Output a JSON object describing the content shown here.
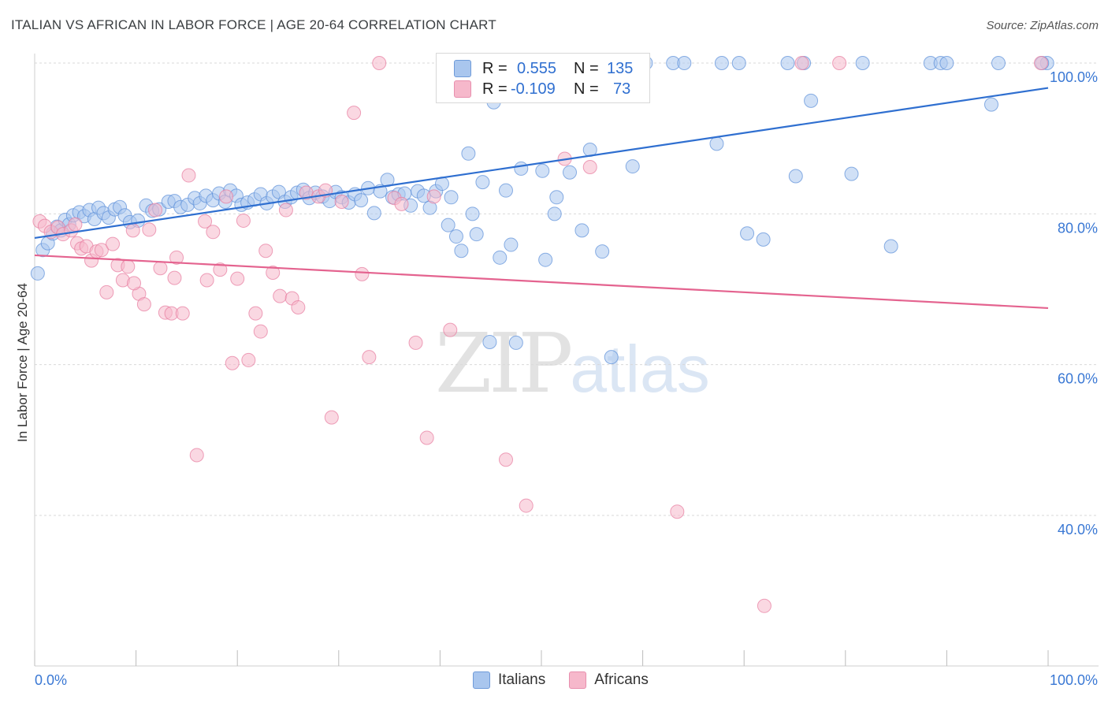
{
  "title": "ITALIAN VS AFRICAN IN LABOR FORCE | AGE 20-64 CORRELATION CHART",
  "source": "Source: ZipAtlas.com",
  "watermark": {
    "zip": "ZIP",
    "atlas": "atlas"
  },
  "legend": {
    "rows": [
      {
        "r_label": "R =",
        "r_value": "0.555",
        "n_label": "N =",
        "n_value": "135",
        "color": "#a9c6ee"
      },
      {
        "r_label": "R =",
        "r_value": "-0.109",
        "n_label": "N =",
        "n_value": "73",
        "color": "#f6b8cb"
      }
    ]
  },
  "bottom_legend": [
    {
      "label": "Italians",
      "color": "#a9c6ee"
    },
    {
      "label": "Africans",
      "color": "#f6b8cb"
    }
  ],
  "chart_data": {
    "type": "scatter",
    "title": "ITALIAN VS AFRICAN IN LABOR FORCE | AGE 20-64 CORRELATION CHART",
    "xlabel": "",
    "ylabel": "In Labor Force | Age 20-64",
    "xlim": [
      0,
      100
    ],
    "ylim": [
      20,
      102
    ],
    "x_tick_labels": [
      "0.0%",
      "100.0%"
    ],
    "y_ticks": [
      40,
      60,
      80,
      100
    ],
    "y_tick_labels": [
      "40.0%",
      "60.0%",
      "80.0%",
      "100.0%"
    ],
    "grid": "horizontal dashed",
    "legend_placement": "top-center",
    "series": [
      {
        "name": "Italians",
        "color": "#5b8fd9",
        "fill": "#a9c6ee",
        "trend": {
          "x": [
            0,
            100
          ],
          "y": [
            76.8,
            96.7
          ]
        },
        "points": [
          [
            0.3,
            72.1
          ],
          [
            0.8,
            75.2
          ],
          [
            1.3,
            76.1
          ],
          [
            1.8,
            77.4
          ],
          [
            2.2,
            78.3
          ],
          [
            2.6,
            77.8
          ],
          [
            3.0,
            79.2
          ],
          [
            3.4,
            78.6
          ],
          [
            3.8,
            79.8
          ],
          [
            4.4,
            80.2
          ],
          [
            4.9,
            79.7
          ],
          [
            5.4,
            80.5
          ],
          [
            5.9,
            79.3
          ],
          [
            6.3,
            80.8
          ],
          [
            6.8,
            80.1
          ],
          [
            7.3,
            79.5
          ],
          [
            7.9,
            80.6
          ],
          [
            8.4,
            80.9
          ],
          [
            8.9,
            79.8
          ],
          [
            9.4,
            78.9
          ],
          [
            10.2,
            79.1
          ],
          [
            11.0,
            81.1
          ],
          [
            11.6,
            80.4
          ],
          [
            12.3,
            80.6
          ],
          [
            13.2,
            81.6
          ],
          [
            13.8,
            81.7
          ],
          [
            14.4,
            80.9
          ],
          [
            15.1,
            81.2
          ],
          [
            15.8,
            82.1
          ],
          [
            16.3,
            81.4
          ],
          [
            16.9,
            82.4
          ],
          [
            17.6,
            81.8
          ],
          [
            18.2,
            82.7
          ],
          [
            18.8,
            81.6
          ],
          [
            19.3,
            83.1
          ],
          [
            19.9,
            82.4
          ],
          [
            20.4,
            81.2
          ],
          [
            21.0,
            81.5
          ],
          [
            21.7,
            81.9
          ],
          [
            22.3,
            82.6
          ],
          [
            22.9,
            81.4
          ],
          [
            23.5,
            82.3
          ],
          [
            24.1,
            82.9
          ],
          [
            24.7,
            81.6
          ],
          [
            25.3,
            82.2
          ],
          [
            25.9,
            82.8
          ],
          [
            26.5,
            83.2
          ],
          [
            27.1,
            82.1
          ],
          [
            27.7,
            82.8
          ],
          [
            28.4,
            82.3
          ],
          [
            29.1,
            81.7
          ],
          [
            29.7,
            82.9
          ],
          [
            30.3,
            82.2
          ],
          [
            31.0,
            81.5
          ],
          [
            31.6,
            82.6
          ],
          [
            32.2,
            81.8
          ],
          [
            32.9,
            83.4
          ],
          [
            33.5,
            80.1
          ],
          [
            34.1,
            83.0
          ],
          [
            34.8,
            84.5
          ],
          [
            35.3,
            82.2
          ],
          [
            35.9,
            82.6
          ],
          [
            36.5,
            82.7
          ],
          [
            37.1,
            81.1
          ],
          [
            37.8,
            83.0
          ],
          [
            38.4,
            82.4
          ],
          [
            39.0,
            80.8
          ],
          [
            39.6,
            83.0
          ],
          [
            40.2,
            84.0
          ],
          [
            40.8,
            78.5
          ],
          [
            41.1,
            82.2
          ],
          [
            41.6,
            77.0
          ],
          [
            42.1,
            75.1
          ],
          [
            42.8,
            88.0
          ],
          [
            43.2,
            80.0
          ],
          [
            43.6,
            77.3
          ],
          [
            44.2,
            84.2
          ],
          [
            44.9,
            63.0
          ],
          [
            45.3,
            94.8
          ],
          [
            45.9,
            74.2
          ],
          [
            46.5,
            83.1
          ],
          [
            47.0,
            75.9
          ],
          [
            47.5,
            62.9
          ],
          [
            48.0,
            86.0
          ],
          [
            50.1,
            85.7
          ],
          [
            50.4,
            73.9
          ],
          [
            51.5,
            82.2
          ],
          [
            51.3,
            80.0
          ],
          [
            52.8,
            85.5
          ],
          [
            54.0,
            77.8
          ],
          [
            54.8,
            88.5
          ],
          [
            56.0,
            75.0
          ],
          [
            56.9,
            61.0
          ],
          [
            58.5,
            100.0
          ],
          [
            59.0,
            86.3
          ],
          [
            60.3,
            100.0
          ],
          [
            63.0,
            100.0
          ],
          [
            64.1,
            100.0
          ],
          [
            67.3,
            89.3
          ],
          [
            67.8,
            100.0
          ],
          [
            69.5,
            100.0
          ],
          [
            70.3,
            77.4
          ],
          [
            71.9,
            76.6
          ],
          [
            74.3,
            100.0
          ],
          [
            75.1,
            85.0
          ],
          [
            75.9,
            100.0
          ],
          [
            76.6,
            95.0
          ],
          [
            80.6,
            85.3
          ],
          [
            81.7,
            100.0
          ],
          [
            84.5,
            75.7
          ],
          [
            88.4,
            100.0
          ],
          [
            89.4,
            100.0
          ],
          [
            90.0,
            100.0
          ],
          [
            94.4,
            94.5
          ],
          [
            95.1,
            100.0
          ],
          [
            99.9,
            100.0
          ],
          [
            99.4,
            100.0
          ]
        ]
      },
      {
        "name": "Africans",
        "color": "#e77a9e",
        "fill": "#f6b8cb",
        "trend": {
          "x": [
            0,
            100
          ],
          "y": [
            74.5,
            67.5
          ]
        },
        "points": [
          [
            0.5,
            79.0
          ],
          [
            1.0,
            78.4
          ],
          [
            1.6,
            77.6
          ],
          [
            2.3,
            78.2
          ],
          [
            2.8,
            77.3
          ],
          [
            3.6,
            77.8
          ],
          [
            4.2,
            76.1
          ],
          [
            4.6,
            75.4
          ],
          [
            5.1,
            75.7
          ],
          [
            5.6,
            73.8
          ],
          [
            6.1,
            75.0
          ],
          [
            6.6,
            75.2
          ],
          [
            7.1,
            69.6
          ],
          [
            7.7,
            76.0
          ],
          [
            8.2,
            73.2
          ],
          [
            8.7,
            71.2
          ],
          [
            9.2,
            73.0
          ],
          [
            9.7,
            77.8
          ],
          [
            10.3,
            69.4
          ],
          [
            10.8,
            68.0
          ],
          [
            11.3,
            77.9
          ],
          [
            11.9,
            80.5
          ],
          [
            12.4,
            72.8
          ],
          [
            12.9,
            66.9
          ],
          [
            13.5,
            66.8
          ],
          [
            14.0,
            74.2
          ],
          [
            14.6,
            66.8
          ],
          [
            15.2,
            85.1
          ],
          [
            16.0,
            48.0
          ],
          [
            16.8,
            79.0
          ],
          [
            17.0,
            71.2
          ],
          [
            17.6,
            77.6
          ],
          [
            18.3,
            72.6
          ],
          [
            18.9,
            82.3
          ],
          [
            19.5,
            60.2
          ],
          [
            20.0,
            71.4
          ],
          [
            20.6,
            79.1
          ],
          [
            21.1,
            60.6
          ],
          [
            21.8,
            66.8
          ],
          [
            22.3,
            64.4
          ],
          [
            22.8,
            75.1
          ],
          [
            23.5,
            72.2
          ],
          [
            24.2,
            69.1
          ],
          [
            24.8,
            80.5
          ],
          [
            25.4,
            68.8
          ],
          [
            26.0,
            67.6
          ],
          [
            26.8,
            82.8
          ],
          [
            28.0,
            82.3
          ],
          [
            28.7,
            83.1
          ],
          [
            29.3,
            53.0
          ],
          [
            30.3,
            81.6
          ],
          [
            31.5,
            93.4
          ],
          [
            32.3,
            72.0
          ],
          [
            33.0,
            61.0
          ],
          [
            34.0,
            100.0
          ],
          [
            35.5,
            82.1
          ],
          [
            36.2,
            81.3
          ],
          [
            37.6,
            62.9
          ],
          [
            38.7,
            50.3
          ],
          [
            39.4,
            82.3
          ],
          [
            41.0,
            64.6
          ],
          [
            46.5,
            47.4
          ],
          [
            48.5,
            41.3
          ],
          [
            52.3,
            87.3
          ],
          [
            54.8,
            86.2
          ],
          [
            63.4,
            40.5
          ],
          [
            72.0,
            28.0
          ],
          [
            75.7,
            100.0
          ],
          [
            79.4,
            100.0
          ],
          [
            99.3,
            100.0
          ],
          [
            4.0,
            78.6
          ],
          [
            9.8,
            70.8
          ],
          [
            13.8,
            71.5
          ]
        ]
      }
    ]
  }
}
